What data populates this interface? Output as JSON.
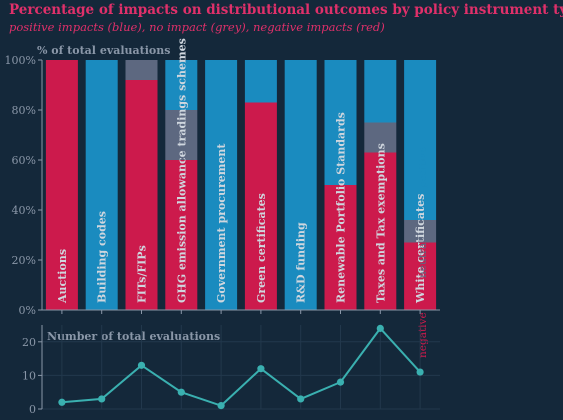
{
  "title": "Percentage of impacts on distributional outcomes by policy instrument type",
  "subtitle": "positive impacts (blue), no impact (grey), negative impacts (red)",
  "colors": {
    "background": "#14283a",
    "positive": "#1a8bbf",
    "neutral": "#5d6880",
    "negative": "#cc1a4c",
    "line": "#3ab0b0",
    "title": "#e0306a",
    "axis_text": "#8a97a8",
    "grid": "#22384c"
  },
  "chart_data": [
    {
      "type": "bar",
      "stacked": true,
      "title": "% of total evaluations",
      "categories": [
        "Auctions",
        "Building codes",
        "FITs/FIPs",
        "GHG emission allowance tradings schemes",
        "Government procurement",
        "Green certificates",
        "R&D funding",
        "Renewable Portfolio Standards",
        "Taxes and Tax exemptions",
        "White certificates"
      ],
      "series": [
        {
          "name": "negative",
          "values": [
            100,
            0,
            92,
            60,
            0,
            83,
            0,
            50,
            63,
            27
          ]
        },
        {
          "name": "neutral",
          "values": [
            0,
            0,
            8,
            20,
            0,
            0,
            0,
            0,
            12,
            9
          ]
        },
        {
          "name": "positive",
          "values": [
            0,
            100,
            0,
            20,
            100,
            17,
            100,
            50,
            25,
            64
          ]
        }
      ],
      "yticks": [
        "0%",
        "20%",
        "40%",
        "60%",
        "80%",
        "100%"
      ],
      "ylim": [
        0,
        100
      ],
      "legend": [
        "positive",
        "neutral",
        "negative"
      ],
      "legend_placement": "right"
    },
    {
      "type": "line",
      "title": "Number of total evaluations",
      "categories": [
        "Auctions",
        "Building codes",
        "FITs/FIPs",
        "GHG emission allowance tradings schemes",
        "Government procurement",
        "Green certificates",
        "R&D funding",
        "Renewable Portfolio Standards",
        "Taxes and Tax exemptions",
        "White certificates"
      ],
      "values": [
        2,
        3,
        13,
        5,
        1,
        12,
        3,
        8,
        24,
        11
      ],
      "yticks": [
        "0",
        "10",
        "20"
      ],
      "ylim": [
        0,
        25
      ],
      "grid": true
    }
  ]
}
